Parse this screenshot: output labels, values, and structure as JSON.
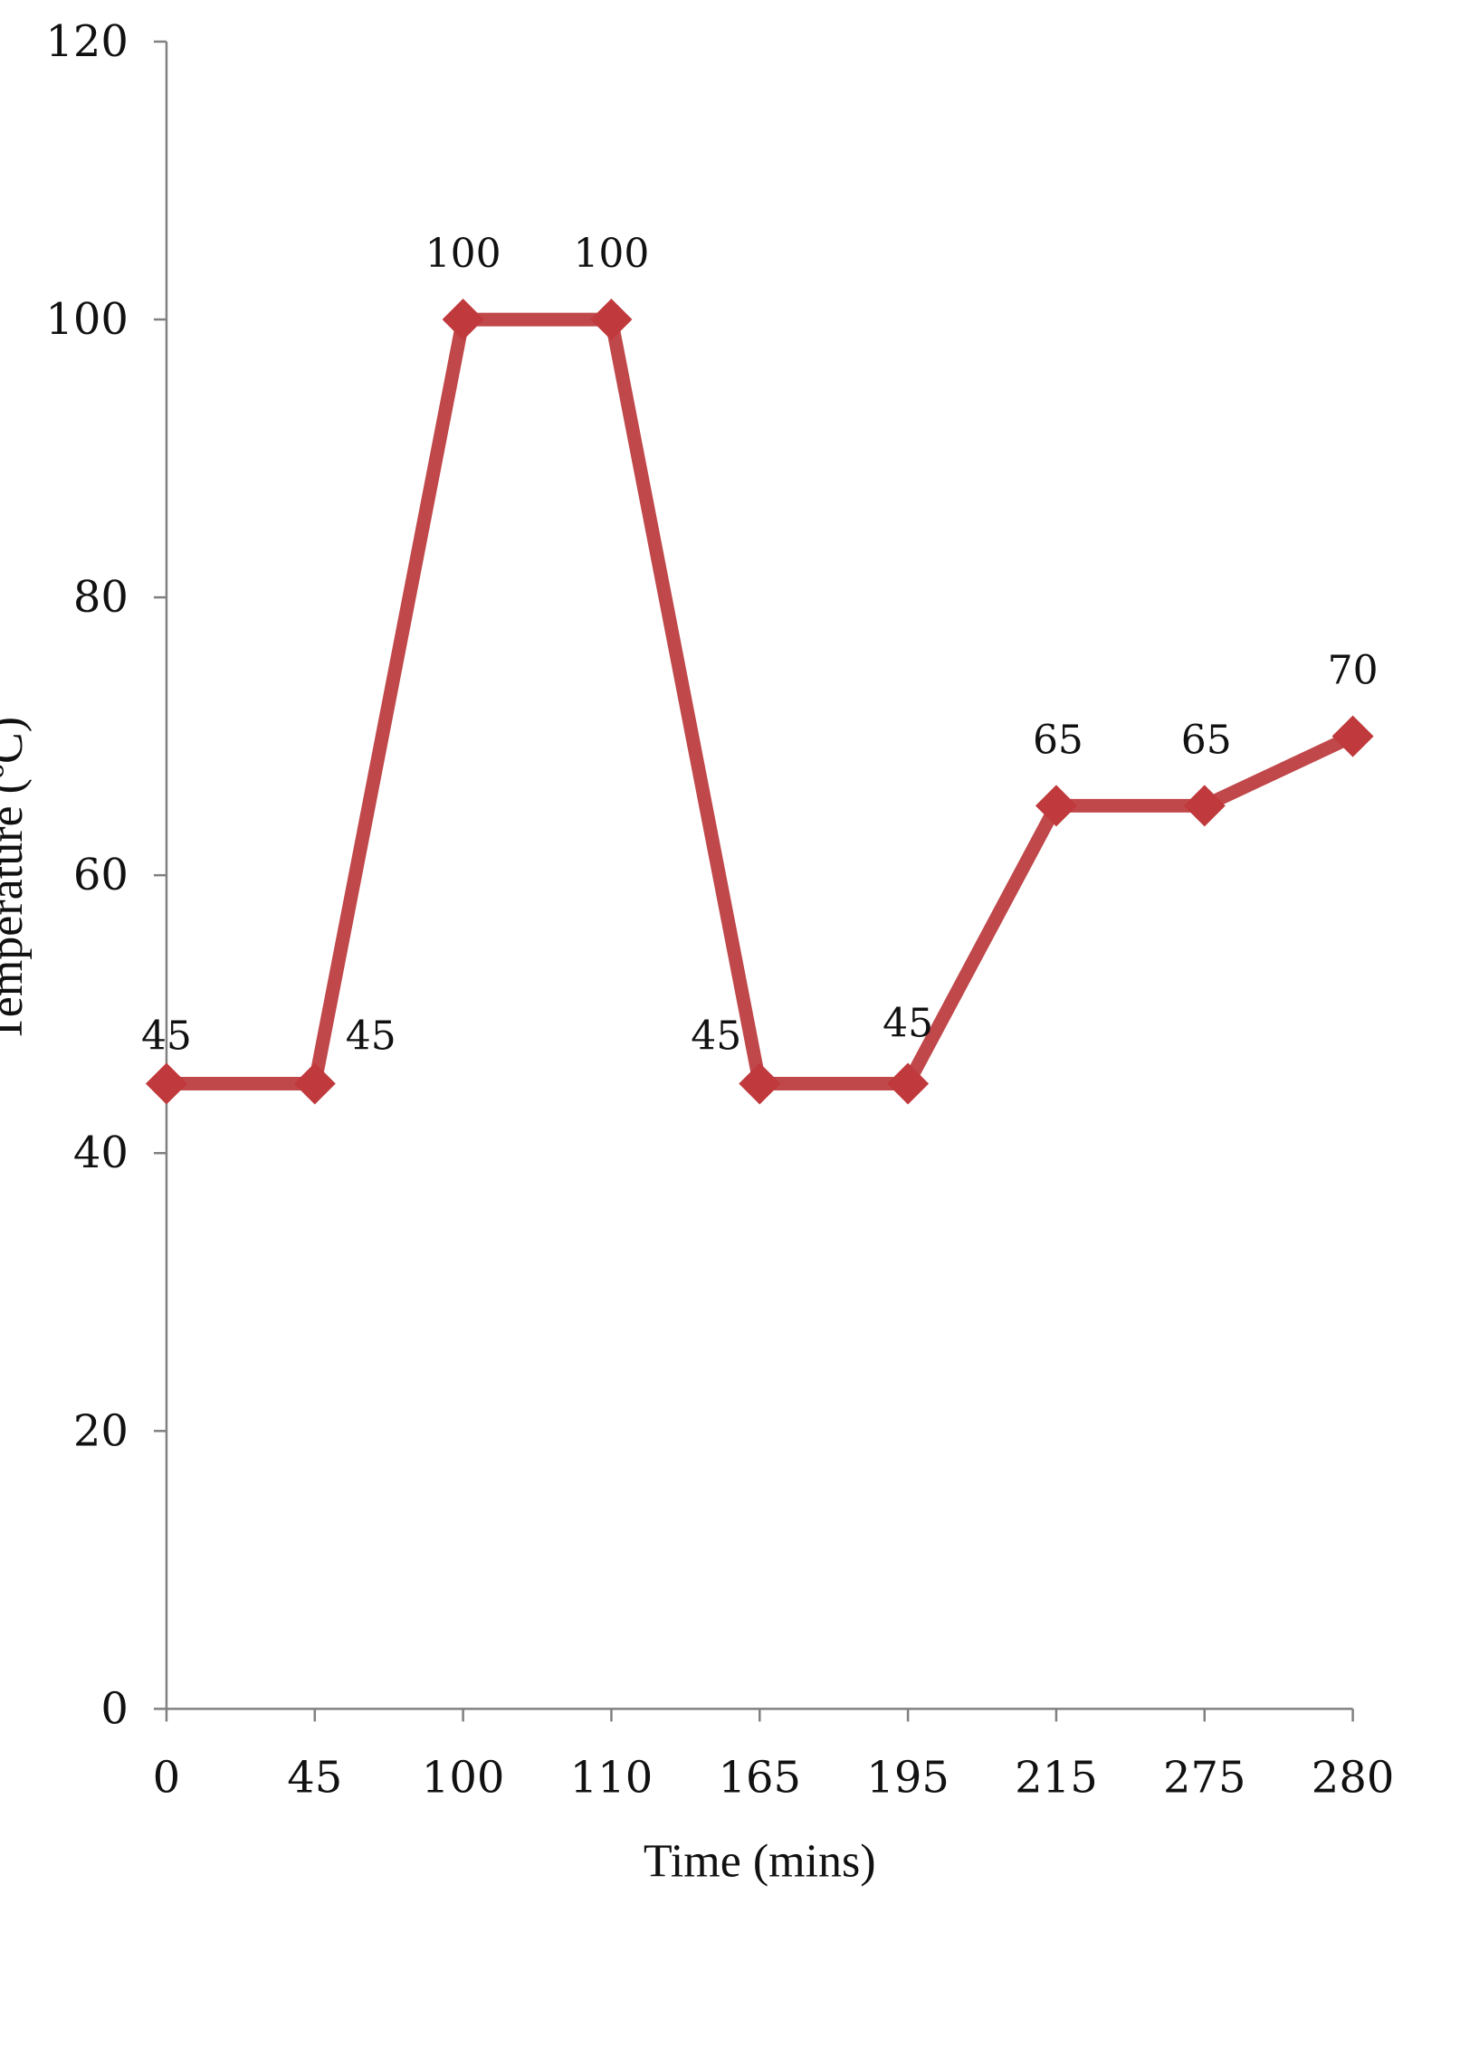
{
  "chart_data": {
    "type": "line",
    "xlabel": "Time (mins)",
    "ylabel": "Temperature (ºC)",
    "categories": [
      "0",
      "45",
      "100",
      "110",
      "165",
      "195",
      "215",
      "275",
      "280"
    ],
    "series": [
      {
        "values": [
          45,
          45,
          100,
          100,
          45,
          45,
          65,
          65,
          70
        ]
      }
    ],
    "data_labels": [
      "45",
      "45",
      "100",
      "100",
      "45",
      "45",
      "65",
      "65",
      "70"
    ],
    "ylim": [
      0,
      120
    ],
    "yticks": [
      0,
      20,
      40,
      60,
      80,
      100,
      120
    ],
    "ytick_labels": [
      "0",
      "20",
      "40",
      "60",
      "80",
      "100",
      "120"
    ],
    "grid": false,
    "legend": "none",
    "marker": "diamond",
    "colors": {
      "line": "#C0474A",
      "marker": "#C0393C",
      "axis": "#808080",
      "text": "#111111"
    }
  }
}
